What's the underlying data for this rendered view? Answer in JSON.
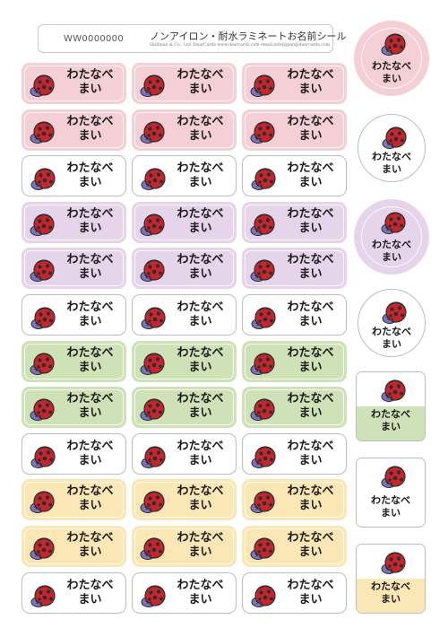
{
  "header": {
    "code": "WW0000000",
    "title": "ノンアイロン・耐水ラミネートお名前シール",
    "subtitle": "Skillman & Co., Ltd.-DearCards  www.dearcards.com  email:info@jpan@dearcards.com"
  },
  "sticker_name_line1": "わたなべ",
  "sticker_name_line2": "まい",
  "colors": {
    "pink": "#f4cfd6",
    "purple": "#e6d5ea",
    "green": "#cfe1b6",
    "yellow": "#fbe7b6",
    "white": "#ffffff"
  },
  "rows": [
    {
      "color": "pink"
    },
    {
      "color": "pink"
    },
    {
      "color": "white"
    },
    {
      "color": "purple"
    },
    {
      "color": "purple"
    },
    {
      "color": "white"
    },
    {
      "color": "green"
    },
    {
      "color": "green"
    },
    {
      "color": "white"
    },
    {
      "color": "yellow"
    },
    {
      "color": "yellow"
    },
    {
      "color": "white"
    }
  ],
  "side_stickers": [
    {
      "shape": "circle",
      "color": "pink"
    },
    {
      "shape": "circle",
      "color": "white"
    },
    {
      "shape": "circle",
      "color": "purple"
    },
    {
      "shape": "circle",
      "color": "white"
    },
    {
      "shape": "square",
      "color": "green"
    },
    {
      "shape": "square",
      "color": "white"
    },
    {
      "shape": "square",
      "color": "yellow"
    }
  ],
  "icon": "ladybug-icon"
}
